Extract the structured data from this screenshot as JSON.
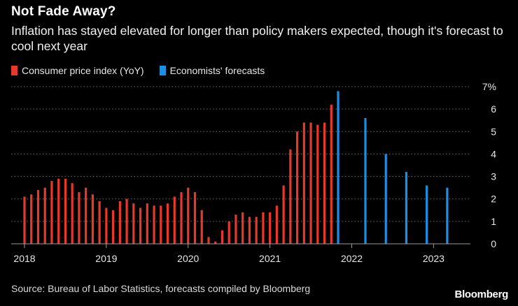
{
  "title": "Not Fade Away?",
  "subtitle": "Inflation has stayed elevated for longer than policy makers expected, though it's forecast to cool next year",
  "legend": [
    {
      "label": "Consumer price index (YoY)",
      "color": "#e8382c"
    },
    {
      "label": "Economists' forecasts",
      "color": "#1a8fe3"
    }
  ],
  "source": "Source: Bureau of Labor Statistics, forecasts compiled by Bloomberg",
  "brand": "Bloomberg",
  "chart_data": {
    "type": "bar",
    "x_unit": "month",
    "y_unit": "%",
    "ylim": [
      0,
      7
    ],
    "y_ticks": [
      "0",
      "1",
      "2",
      "3",
      "4",
      "5",
      "6",
      "7%"
    ],
    "x_ticks": [
      "2018",
      "2019",
      "2020",
      "2021",
      "2022",
      "2023"
    ],
    "grid": "horizontal dotted",
    "legend_position": "top-left",
    "series": [
      {
        "name": "Consumer price index (YoY)",
        "color": "#e8382c",
        "points": [
          [
            "2018-01",
            2.1
          ],
          [
            "2018-02",
            2.2
          ],
          [
            "2018-03",
            2.4
          ],
          [
            "2018-04",
            2.5
          ],
          [
            "2018-05",
            2.8
          ],
          [
            "2018-06",
            2.9
          ],
          [
            "2018-07",
            2.9
          ],
          [
            "2018-08",
            2.7
          ],
          [
            "2018-09",
            2.3
          ],
          [
            "2018-10",
            2.5
          ],
          [
            "2018-11",
            2.2
          ],
          [
            "2018-12",
            1.9
          ],
          [
            "2019-01",
            1.6
          ],
          [
            "2019-02",
            1.5
          ],
          [
            "2019-03",
            1.9
          ],
          [
            "2019-04",
            2.0
          ],
          [
            "2019-05",
            1.8
          ],
          [
            "2019-06",
            1.6
          ],
          [
            "2019-07",
            1.8
          ],
          [
            "2019-08",
            1.7
          ],
          [
            "2019-09",
            1.7
          ],
          [
            "2019-10",
            1.8
          ],
          [
            "2019-11",
            2.1
          ],
          [
            "2019-12",
            2.3
          ],
          [
            "2020-01",
            2.5
          ],
          [
            "2020-02",
            2.3
          ],
          [
            "2020-03",
            1.5
          ],
          [
            "2020-04",
            0.3
          ],
          [
            "2020-05",
            0.1
          ],
          [
            "2020-06",
            0.6
          ],
          [
            "2020-07",
            1.0
          ],
          [
            "2020-08",
            1.3
          ],
          [
            "2020-09",
            1.4
          ],
          [
            "2020-10",
            1.2
          ],
          [
            "2020-11",
            1.2
          ],
          [
            "2020-12",
            1.4
          ],
          [
            "2021-01",
            1.4
          ],
          [
            "2021-02",
            1.7
          ],
          [
            "2021-03",
            2.6
          ],
          [
            "2021-04",
            4.2
          ],
          [
            "2021-05",
            5.0
          ],
          [
            "2021-06",
            5.4
          ],
          [
            "2021-07",
            5.4
          ],
          [
            "2021-08",
            5.3
          ],
          [
            "2021-09",
            5.4
          ],
          [
            "2021-10",
            6.2
          ]
        ]
      },
      {
        "name": "Economists' forecasts",
        "color": "#1a8fe3",
        "points": [
          [
            "2021-11",
            6.8
          ],
          [
            "2022-03",
            5.6
          ],
          [
            "2022-06",
            4.0
          ],
          [
            "2022-09",
            3.2
          ],
          [
            "2022-12",
            2.6
          ],
          [
            "2023-03",
            2.5
          ]
        ]
      }
    ]
  }
}
